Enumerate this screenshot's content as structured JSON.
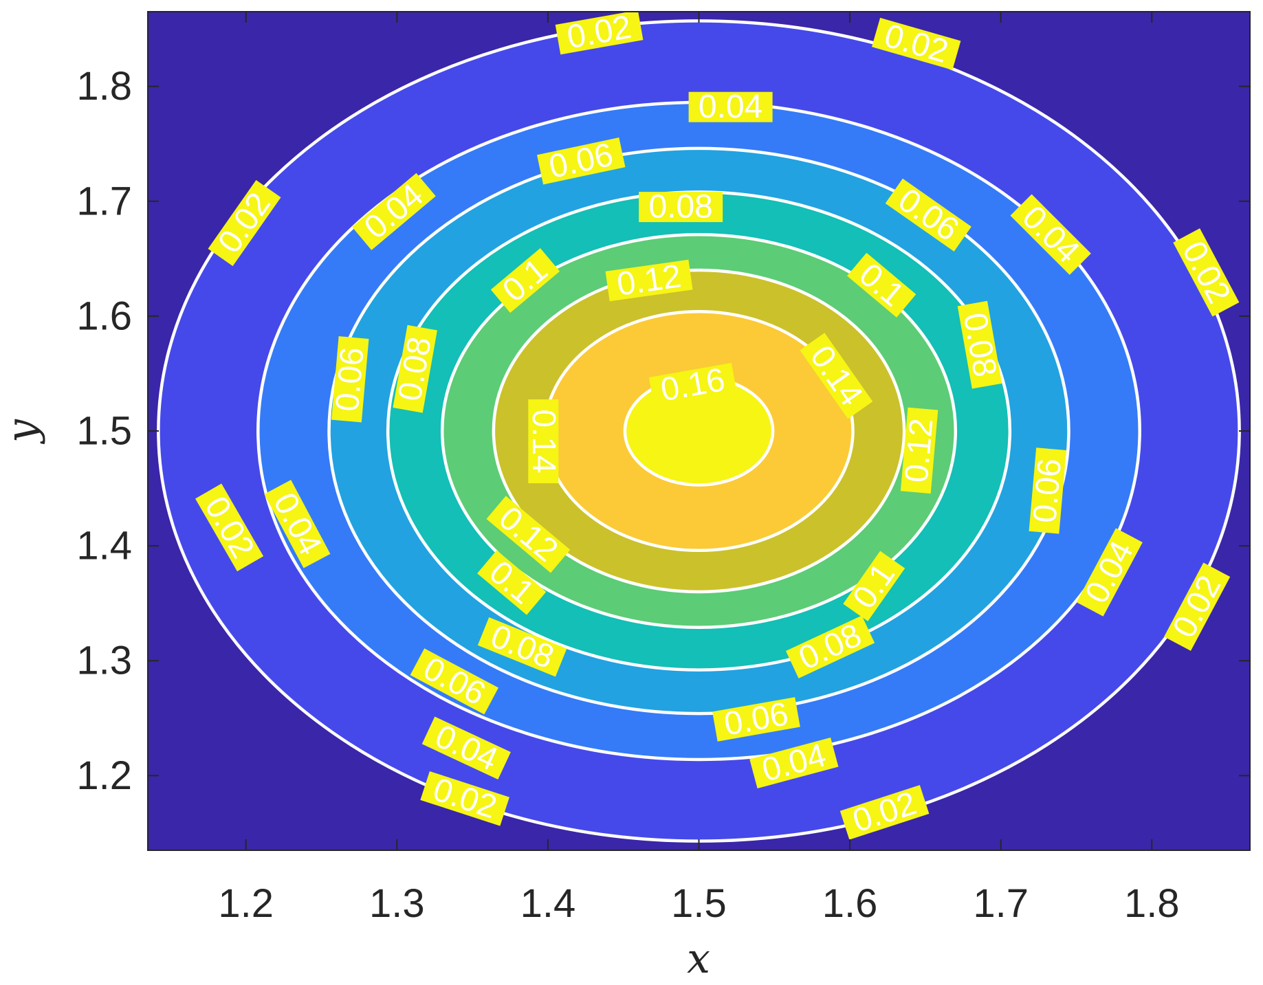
{
  "chart_data": {
    "type": "contour",
    "xlabel": "x",
    "ylabel": "y",
    "xlim": [
      1.135,
      1.865
    ],
    "ylim": [
      1.135,
      1.865
    ],
    "x_ticks": [
      "1.2",
      "1.3",
      "1.4",
      "1.5",
      "1.6",
      "1.7",
      "1.8"
    ],
    "y_ticks": [
      "1.2",
      "1.3",
      "1.4",
      "1.5",
      "1.6",
      "1.7",
      "1.8"
    ],
    "x_tick_values": [
      1.2,
      1.3,
      1.4,
      1.5,
      1.6,
      1.7,
      1.8
    ],
    "y_tick_values": [
      1.2,
      1.3,
      1.4,
      1.5,
      1.6,
      1.7,
      1.8
    ],
    "center": [
      1.5,
      1.5
    ],
    "contour_line_color": "#ffffff",
    "background_color": "#3a26a8",
    "levels": [
      {
        "level": 0.02,
        "fill": "#4549ea",
        "rx": 0.358,
        "ry": 0.357
      },
      {
        "level": 0.04,
        "fill": "#357bf7",
        "rx": 0.292,
        "ry": 0.286
      },
      {
        "level": 0.06,
        "fill": "#22a2e1",
        "rx": 0.245,
        "ry": 0.246
      },
      {
        "level": 0.08,
        "fill": "#13bfb6",
        "rx": 0.206,
        "ry": 0.208
      },
      {
        "level": 0.1,
        "fill": "#5ccc76",
        "rx": 0.17,
        "ry": 0.171
      },
      {
        "level": 0.12,
        "fill": "#cbc12b",
        "rx": 0.136,
        "ry": 0.14
      },
      {
        "level": 0.14,
        "fill": "#fbca36",
        "rx": 0.102,
        "ry": 0.104
      },
      {
        "level": 0.16,
        "fill": "#f6f514",
        "rx": 0.049,
        "ry": 0.047
      }
    ],
    "labels": [
      {
        "text": "0.02",
        "x": 1.434,
        "y": 1.847,
        "angle": -10
      },
      {
        "text": "0.02",
        "x": 1.644,
        "y": 1.837,
        "angle": 16
      },
      {
        "text": "0.02",
        "x": 1.199,
        "y": 1.681,
        "angle": -55
      },
      {
        "text": "0.02",
        "x": 1.836,
        "y": 1.638,
        "angle": 62
      },
      {
        "text": "0.02",
        "x": 1.189,
        "y": 1.416,
        "angle": 60
      },
      {
        "text": "0.02",
        "x": 1.83,
        "y": 1.347,
        "angle": -62
      },
      {
        "text": "0.02",
        "x": 1.345,
        "y": 1.18,
        "angle": 18
      },
      {
        "text": "0.02",
        "x": 1.623,
        "y": 1.168,
        "angle": -18
      },
      {
        "text": "0.04",
        "x": 1.521,
        "y": 1.782,
        "angle": 0
      },
      {
        "text": "0.04",
        "x": 1.298,
        "y": 1.691,
        "angle": -40
      },
      {
        "text": "0.04",
        "x": 1.733,
        "y": 1.671,
        "angle": 45
      },
      {
        "text": "0.04",
        "x": 1.234,
        "y": 1.419,
        "angle": 62
      },
      {
        "text": "0.04",
        "x": 1.772,
        "y": 1.377,
        "angle": -62
      },
      {
        "text": "0.04",
        "x": 1.346,
        "y": 1.224,
        "angle": 25
      },
      {
        "text": "0.04",
        "x": 1.563,
        "y": 1.211,
        "angle": -15
      },
      {
        "text": "0.06",
        "x": 1.422,
        "y": 1.735,
        "angle": -12
      },
      {
        "text": "0.06",
        "x": 1.652,
        "y": 1.688,
        "angle": 35
      },
      {
        "text": "0.06",
        "x": 1.269,
        "y": 1.545,
        "angle": -85
      },
      {
        "text": "0.06",
        "x": 1.731,
        "y": 1.448,
        "angle": -85
      },
      {
        "text": "0.06",
        "x": 1.338,
        "y": 1.282,
        "angle": 28
      },
      {
        "text": "0.06",
        "x": 1.538,
        "y": 1.249,
        "angle": -10
      },
      {
        "text": "0.08",
        "x": 1.488,
        "y": 1.695,
        "angle": 0
      },
      {
        "text": "0.08",
        "x": 1.312,
        "y": 1.554,
        "angle": -80
      },
      {
        "text": "0.08",
        "x": 1.686,
        "y": 1.575,
        "angle": 80
      },
      {
        "text": "0.08",
        "x": 1.383,
        "y": 1.312,
        "angle": 22
      },
      {
        "text": "0.08",
        "x": 1.587,
        "y": 1.312,
        "angle": -25
      },
      {
        "text": "0.1",
        "x": 1.385,
        "y": 1.631,
        "angle": -40
      },
      {
        "text": "0.1",
        "x": 1.621,
        "y": 1.627,
        "angle": 40
      },
      {
        "text": "0.1",
        "x": 1.376,
        "y": 1.368,
        "angle": 40
      },
      {
        "text": "0.1",
        "x": 1.616,
        "y": 1.365,
        "angle": -55
      },
      {
        "text": "0.12",
        "x": 1.467,
        "y": 1.631,
        "angle": -8
      },
      {
        "text": "0.12",
        "x": 1.646,
        "y": 1.483,
        "angle": -85
      },
      {
        "text": "0.12",
        "x": 1.387,
        "y": 1.41,
        "angle": 40
      },
      {
        "text": "0.14",
        "x": 1.591,
        "y": 1.548,
        "angle": 55
      },
      {
        "text": "0.14",
        "x": 1.397,
        "y": 1.491,
        "angle": 90
      },
      {
        "text": "0.16",
        "x": 1.496,
        "y": 1.54,
        "angle": -10
      }
    ]
  }
}
